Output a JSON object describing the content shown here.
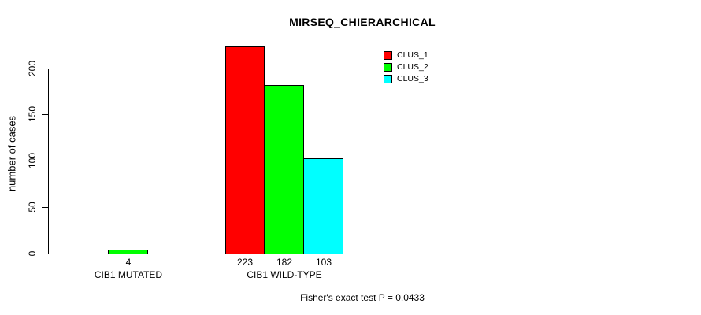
{
  "chart_data": {
    "type": "bar",
    "title": "MIRSEQ_CHIERARCHICAL",
    "xlabel": "",
    "ylabel": "number of cases",
    "ylim": [
      0,
      200
    ],
    "yticks": [
      0,
      50,
      100,
      150,
      200
    ],
    "grid": false,
    "legend_position": "top-right-inside",
    "categories": [
      "CIB1 MUTATED",
      "CIB1 WILD-TYPE"
    ],
    "series": [
      {
        "name": "CLUS_1",
        "color": "#ff0000",
        "values": [
          0,
          223
        ]
      },
      {
        "name": "CLUS_2",
        "color": "#00ff00",
        "values": [
          4,
          182
        ]
      },
      {
        "name": "CLUS_3",
        "color": "#00ffff",
        "values": [
          0,
          103
        ]
      }
    ],
    "bar_labels": [
      [
        "",
        "4",
        ""
      ],
      [
        "223",
        "182",
        "103"
      ]
    ],
    "annotation": "Fisher's exact test P = 0.0433"
  },
  "colors": {
    "axis": "#000000",
    "text": "#000000",
    "background": "#ffffff"
  }
}
